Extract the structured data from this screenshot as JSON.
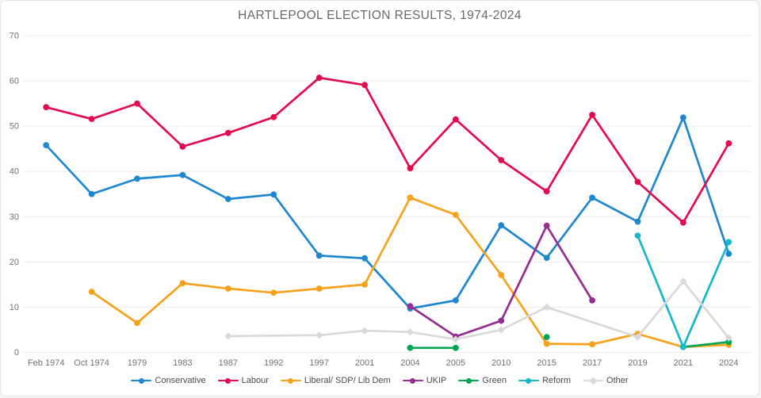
{
  "title": "HARTLEPOOL ELECTION RESULTS, 1974-2024",
  "chart_data": {
    "type": "line",
    "title": "HARTLEPOOL ELECTION RESULTS, 1974-2024",
    "categories": [
      "Feb 1974",
      "Oct 1974",
      "1979",
      "1983",
      "1987",
      "1992",
      "1997",
      "2001",
      "2004",
      "2005",
      "2010",
      "2015",
      "2017",
      "2019",
      "2021",
      "2024"
    ],
    "xlabel": "",
    "ylabel": "",
    "ylim": [
      0,
      70
    ],
    "y_ticks": [
      0,
      10,
      20,
      30,
      40,
      50,
      60,
      70
    ],
    "grid": "horizontal",
    "grid_color": "#ececec",
    "tick_label_color": "#6e7276",
    "legend_position": "bottom",
    "series": [
      {
        "name": "Conservative",
        "color": "#1e87d0",
        "marker": "circle",
        "connect_gaps": false,
        "values": [
          45.8,
          35.0,
          38.4,
          39.2,
          33.9,
          34.9,
          21.4,
          20.8,
          9.7,
          11.5,
          28.1,
          20.9,
          34.2,
          28.9,
          51.9,
          21.8
        ]
      },
      {
        "name": "Labour",
        "color": "#e30b4e",
        "marker": "circle",
        "connect_gaps": false,
        "values": [
          54.2,
          51.6,
          55.0,
          45.5,
          48.5,
          52.0,
          60.7,
          59.1,
          40.7,
          51.5,
          42.5,
          35.6,
          52.5,
          37.7,
          28.7,
          46.2
        ]
      },
      {
        "name": "Liberal/ SDP/ Lib Dem",
        "color": "#f6a21d",
        "marker": "circle",
        "connect_gaps": false,
        "values": [
          null,
          13.4,
          6.5,
          15.3,
          14.1,
          13.2,
          14.1,
          15.0,
          34.2,
          30.4,
          17.1,
          1.9,
          1.8,
          4.1,
          1.2,
          1.7
        ]
      },
      {
        "name": "UKIP",
        "color": "#962d91",
        "marker": "circle",
        "connect_gaps": false,
        "values": [
          null,
          null,
          null,
          null,
          null,
          null,
          null,
          null,
          10.2,
          3.5,
          7.0,
          28.0,
          11.5,
          null,
          null,
          null
        ]
      },
      {
        "name": "Green",
        "color": "#00a651",
        "marker": "circle",
        "connect_gaps": false,
        "values": [
          null,
          null,
          null,
          null,
          null,
          null,
          null,
          null,
          1.0,
          1.0,
          null,
          3.4,
          null,
          null,
          1.2,
          2.3
        ]
      },
      {
        "name": "Reform",
        "color": "#17b6cd",
        "marker": "circle",
        "connect_gaps": false,
        "values": [
          null,
          null,
          null,
          null,
          null,
          null,
          null,
          null,
          null,
          null,
          null,
          null,
          null,
          25.8,
          1.2,
          24.4
        ]
      },
      {
        "name": "Other",
        "color": "#d9d9d9",
        "marker": "diamond",
        "connect_gaps": true,
        "values": [
          null,
          null,
          null,
          null,
          3.6,
          null,
          3.8,
          4.8,
          4.5,
          2.9,
          5.0,
          10.0,
          null,
          3.4,
          15.7,
          3.2
        ]
      }
    ]
  }
}
